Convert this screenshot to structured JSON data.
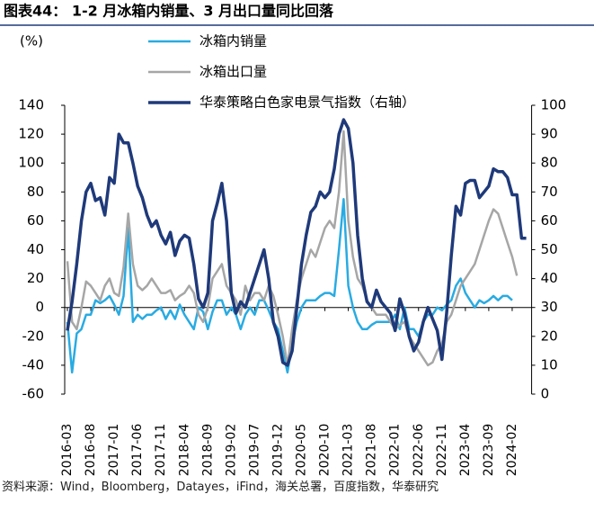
{
  "chart_data": {
    "type": "line",
    "title": "图表44： 1-2 月冰箱内销量、3 月出口量同比回落",
    "y_label": "(%)",
    "source": "资料来源：Wind，Bloomberg，Datayes，iFind，海关总署，百度指数，华泰研究",
    "categories": [
      "2016-03",
      null,
      null,
      null,
      null,
      "2016-08",
      null,
      null,
      null,
      null,
      "2017-01",
      null,
      null,
      null,
      null,
      "2017-06",
      null,
      null,
      null,
      null,
      "2017-11",
      null,
      null,
      null,
      null,
      "2018-04",
      null,
      null,
      null,
      null,
      "2018-09",
      null,
      null,
      null,
      null,
      "2019-02",
      null,
      null,
      null,
      null,
      "2019-07",
      null,
      null,
      null,
      null,
      "2019-12",
      null,
      null,
      null,
      null,
      "2020-05",
      null,
      null,
      null,
      null,
      "2020-10",
      null,
      null,
      null,
      null,
      "2021-03",
      null,
      null,
      null,
      null,
      "2021-08",
      null,
      null,
      null,
      null,
      "2022-01",
      null,
      null,
      null,
      null,
      "2022-06",
      null,
      null,
      null,
      null,
      "2022-11",
      null,
      null,
      null,
      null,
      "2023-04",
      null,
      null,
      null,
      null,
      "2023-09",
      null,
      null,
      null,
      null,
      "2024-02",
      null,
      null,
      null
    ],
    "ylim": [
      -60,
      140
    ],
    "yticks": [
      -60,
      -40,
      -20,
      0,
      20,
      40,
      60,
      80,
      100,
      120,
      140
    ],
    "y2lim": [
      0,
      100
    ],
    "y2ticks": [
      0,
      10,
      20,
      30,
      40,
      50,
      60,
      70,
      80,
      90,
      100
    ],
    "series": [
      {
        "name": "冰箱内销量",
        "color": "#29abe2",
        "values": [
          -10,
          -45,
          -18,
          -15,
          -5,
          -5,
          5,
          3,
          5,
          8,
          2,
          -5,
          8,
          55,
          -10,
          -5,
          -8,
          -5,
          -5,
          -2,
          0,
          -8,
          -2,
          -8,
          2,
          -5,
          -10,
          -15,
          0,
          -3,
          -15,
          -3,
          5,
          5,
          -5,
          0,
          -5,
          -15,
          -5,
          0,
          -5,
          5,
          5,
          -2,
          -10,
          -15,
          -30,
          -45,
          -25,
          -10,
          0,
          5,
          5,
          5,
          8,
          10,
          10,
          8,
          40,
          75,
          15,
          0,
          -10,
          -15,
          -15,
          -12,
          -10,
          -10,
          -10,
          -10,
          -5,
          -15,
          0,
          -15,
          -15,
          -20,
          -10,
          -5,
          -5,
          0,
          -2,
          2,
          5,
          15,
          20,
          10,
          5,
          0,
          5,
          3,
          5,
          8,
          5,
          8,
          8,
          5,
          null,
          null,
          null
        ]
      },
      {
        "name": "冰箱出口量",
        "color": "#a6a6a6",
        "values": [
          32,
          -10,
          -15,
          0,
          18,
          15,
          10,
          5,
          15,
          20,
          10,
          8,
          28,
          65,
          30,
          15,
          12,
          15,
          20,
          15,
          10,
          10,
          12,
          5,
          8,
          10,
          15,
          10,
          -5,
          -10,
          0,
          20,
          25,
          30,
          15,
          10,
          5,
          -5,
          15,
          5,
          10,
          10,
          5,
          15,
          8,
          -5,
          -20,
          -40,
          -15,
          5,
          20,
          30,
          40,
          35,
          45,
          55,
          60,
          55,
          80,
          122,
          60,
          35,
          20,
          15,
          5,
          0,
          -5,
          -5,
          -5,
          -10,
          -15,
          -12,
          -10,
          -20,
          -25,
          -30,
          -35,
          -40,
          -38,
          -30,
          -25,
          -10,
          -5,
          5,
          15,
          20,
          25,
          30,
          40,
          50,
          60,
          68,
          65,
          55,
          45,
          35,
          22,
          null,
          null
        ]
      },
      {
        "name": "华泰策略白色家电景气指数（右轴）",
        "color": "#1f3a7a",
        "axis": "y2",
        "values": [
          22,
          32,
          45,
          60,
          70,
          73,
          67,
          68,
          62,
          75,
          73,
          90,
          87,
          87,
          80,
          72,
          68,
          62,
          58,
          60,
          55,
          52,
          56,
          48,
          53,
          55,
          54,
          45,
          33,
          30,
          35,
          60,
          66,
          73,
          60,
          35,
          28,
          32,
          30,
          35,
          40,
          45,
          50,
          40,
          25,
          20,
          11,
          10,
          15,
          30,
          45,
          55,
          63,
          65,
          70,
          68,
          70,
          78,
          90,
          95,
          92,
          80,
          55,
          40,
          32,
          30,
          36,
          32,
          30,
          28,
          22,
          33,
          28,
          20,
          15,
          18,
          25,
          30,
          26,
          22,
          12,
          28,
          48,
          65,
          62,
          73,
          74,
          74,
          68,
          70,
          72,
          78,
          77,
          77,
          75,
          69,
          69,
          54,
          54
        ]
      }
    ]
  }
}
